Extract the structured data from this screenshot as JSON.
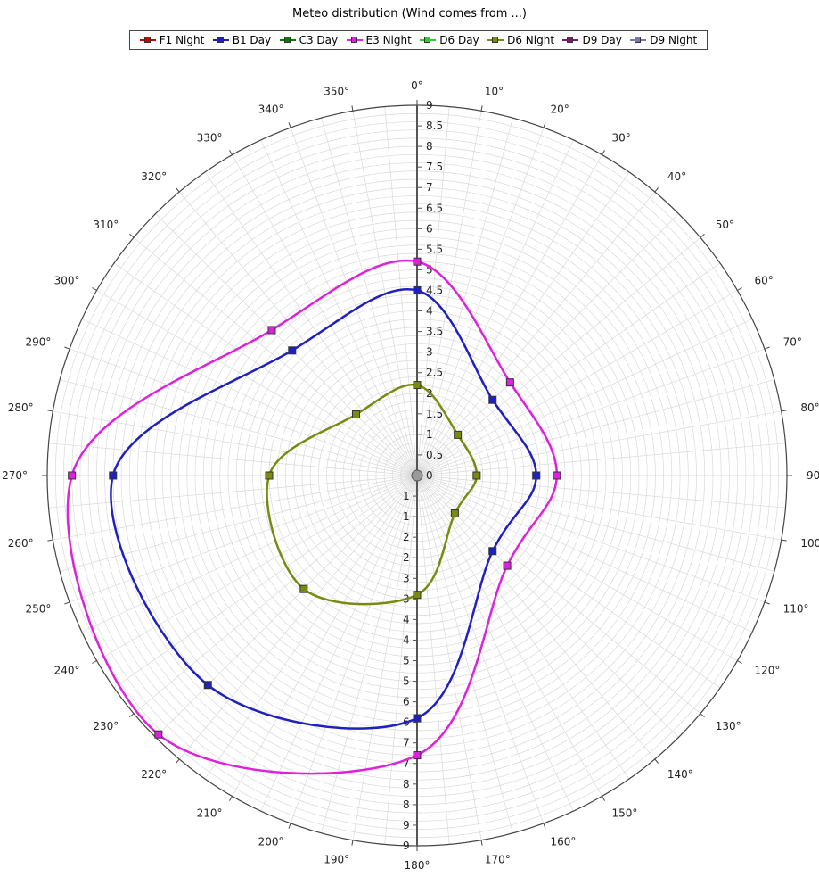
{
  "chart_data": {
    "type": "polar-line",
    "title": "Meteo distribution (Wind comes from ...)",
    "angle_labels": [
      "0°",
      "10°",
      "20°",
      "30°",
      "40°",
      "50°",
      "60°",
      "70°",
      "80°",
      "90°",
      "100°",
      "110°",
      "120°",
      "130°",
      "140°",
      "150°",
      "160°",
      "170°",
      "180°",
      "190°",
      "200°",
      "210°",
      "220°",
      "230°",
      "240°",
      "250°",
      "260°",
      "270°",
      "280°",
      "290°",
      "300°",
      "310°",
      "320°",
      "330°",
      "340°",
      "350°"
    ],
    "radial_ticks_upper": [
      "0",
      "0.5",
      "1",
      "1.5",
      "2",
      "2.5",
      "3",
      "3.5",
      "4",
      "4.5",
      "5",
      "5.5",
      "6",
      "6.5",
      "7",
      "7.5",
      "8",
      "8.5",
      "9"
    ],
    "radial_ticks_lower": [
      "1",
      "1",
      "2",
      "2",
      "3",
      "3",
      "4",
      "4",
      "5",
      "5",
      "6",
      "6",
      "7",
      "7",
      "8",
      "8",
      "9",
      "9"
    ],
    "rlim": [
      0,
      9
    ],
    "grid": true,
    "legend_position": "top",
    "series": [
      {
        "name": "F1 Night",
        "color": "#cc0000",
        "angles": [],
        "values": []
      },
      {
        "name": "B1 Day",
        "color": "#2020c0",
        "angles": [
          0,
          45,
          90,
          135,
          180,
          225,
          270,
          315
        ],
        "values": [
          4.5,
          2.6,
          2.9,
          2.6,
          5.9,
          7.2,
          7.4,
          4.3
        ]
      },
      {
        "name": "C3 Day",
        "color": "#008000",
        "angles": [],
        "values": []
      },
      {
        "name": "E3 Night",
        "color": "#dd22dd",
        "angles": [
          0,
          45,
          90,
          135,
          180,
          225,
          270,
          315
        ],
        "values": [
          5.2,
          3.2,
          3.4,
          3.1,
          6.8,
          8.9,
          8.4,
          5.0
        ]
      },
      {
        "name": "D6 Day",
        "color": "#33cc33",
        "angles": [],
        "values": []
      },
      {
        "name": "D6 Night",
        "color": "#7a8a10",
        "angles": [
          0,
          45,
          90,
          135,
          180,
          225,
          270,
          315
        ],
        "values": [
          2.2,
          1.4,
          1.45,
          1.3,
          2.9,
          3.9,
          3.6,
          2.1
        ]
      },
      {
        "name": "D9 Day",
        "color": "#7a1a6a",
        "angles": [],
        "values": []
      },
      {
        "name": "D9 Night",
        "color": "#7a7aa8",
        "angles": [],
        "values": []
      }
    ]
  }
}
